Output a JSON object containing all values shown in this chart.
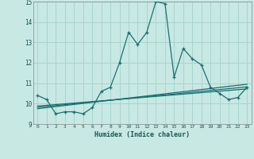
{
  "xlabel": "Humidex (Indice chaleur)",
  "ylabel": "",
  "xlim": [
    -0.5,
    23.5
  ],
  "ylim": [
    9,
    15
  ],
  "yticks": [
    9,
    10,
    11,
    12,
    13,
    14,
    15
  ],
  "xticks": [
    0,
    1,
    2,
    3,
    4,
    5,
    6,
    7,
    8,
    9,
    10,
    11,
    12,
    13,
    14,
    15,
    16,
    17,
    18,
    19,
    20,
    21,
    22,
    23
  ],
  "background_color": "#c8e8e4",
  "grid_color": "#aad4ce",
  "line_color": "#1a7070",
  "main_data_x": [
    0,
    1,
    2,
    3,
    4,
    5,
    6,
    7,
    8,
    9,
    10,
    11,
    12,
    13,
    14,
    15,
    16,
    17,
    18,
    19,
    20,
    21,
    22,
    23
  ],
  "main_data_y": [
    10.4,
    10.2,
    9.5,
    9.6,
    9.6,
    9.5,
    9.8,
    10.6,
    10.8,
    12.0,
    13.5,
    12.9,
    13.5,
    15.0,
    14.9,
    11.3,
    12.7,
    12.2,
    11.9,
    10.8,
    10.5,
    10.2,
    10.3,
    10.8
  ],
  "trend1_x": [
    0,
    23
  ],
  "trend1_y": [
    9.75,
    10.95
  ],
  "trend2_x": [
    0,
    23
  ],
  "trend2_y": [
    9.82,
    10.82
  ],
  "trend3_x": [
    0,
    23
  ],
  "trend3_y": [
    9.88,
    10.72
  ]
}
